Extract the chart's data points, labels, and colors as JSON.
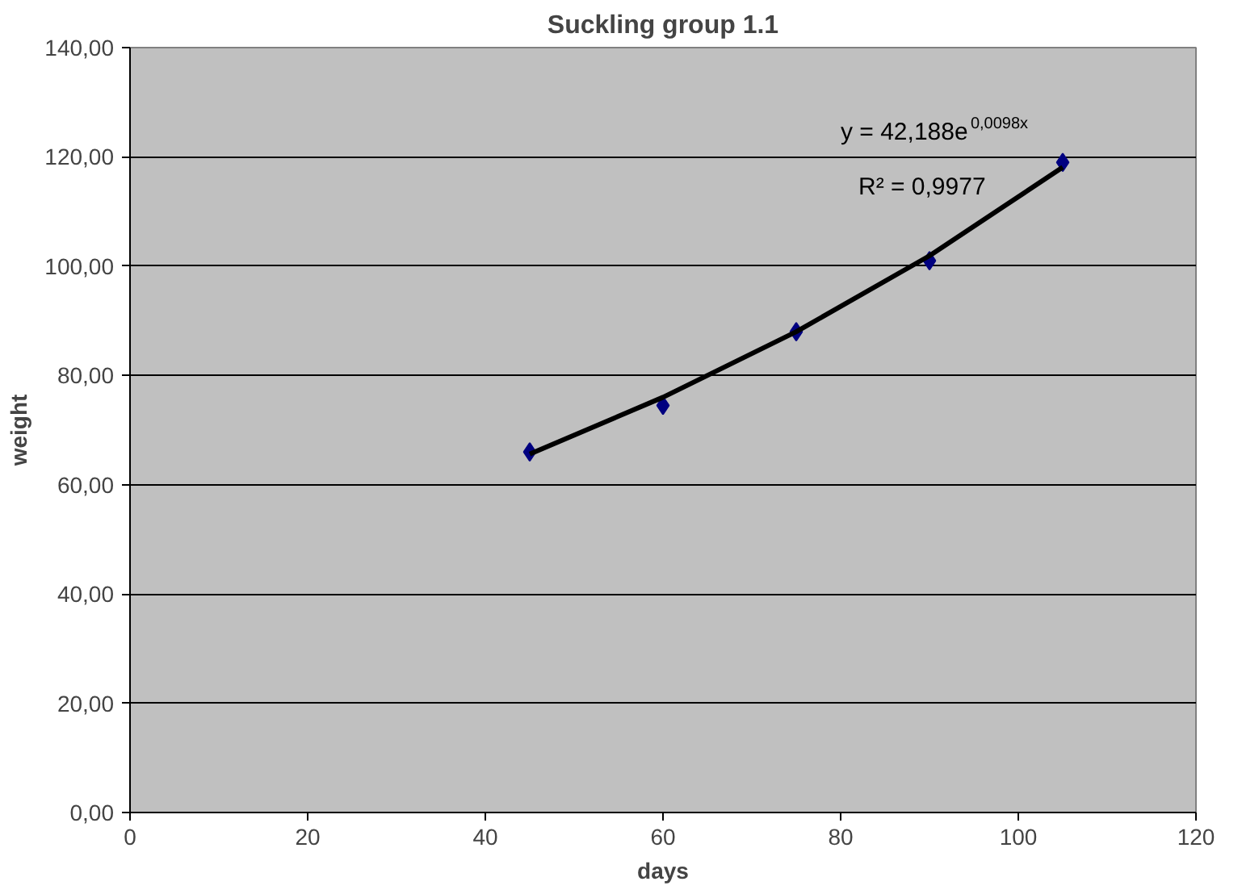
{
  "chart_data": {
    "type": "scatter",
    "title": "Suckling group 1.1",
    "xlabel": "days",
    "ylabel": "weight",
    "x": [
      45,
      60,
      75,
      90,
      105
    ],
    "series": [
      {
        "type": "scatter",
        "color": "#000080",
        "values": [
          66,
          74.5,
          88,
          101,
          119
        ],
        "marker": "diamond"
      },
      {
        "type": "line",
        "color": "#000000",
        "x": [
          45,
          60,
          75,
          90,
          105
        ],
        "values": [
          65.6,
          76.0,
          88.0,
          101.9,
          118.1
        ],
        "line_style": "solid"
      }
    ],
    "xlim": [
      0,
      120
    ],
    "xticks": [
      0,
      20,
      40,
      60,
      80,
      100,
      120
    ],
    "ylim": [
      0,
      140
    ],
    "yticks": [
      {
        "value": 0,
        "label": "0,00"
      },
      {
        "value": 20,
        "label": "20,00"
      },
      {
        "value": 40,
        "label": "40,00"
      },
      {
        "value": 60,
        "label": "60,00"
      },
      {
        "value": 80,
        "label": "80,00"
      },
      {
        "value": 100,
        "label": "100,00"
      },
      {
        "value": 120,
        "label": "120,00"
      },
      {
        "value": 140,
        "label": "140,00"
      }
    ],
    "grid": "y",
    "annotations": [
      "y = 42,188e$^{0,0098x}$",
      "R² = 0,9977"
    ]
  }
}
